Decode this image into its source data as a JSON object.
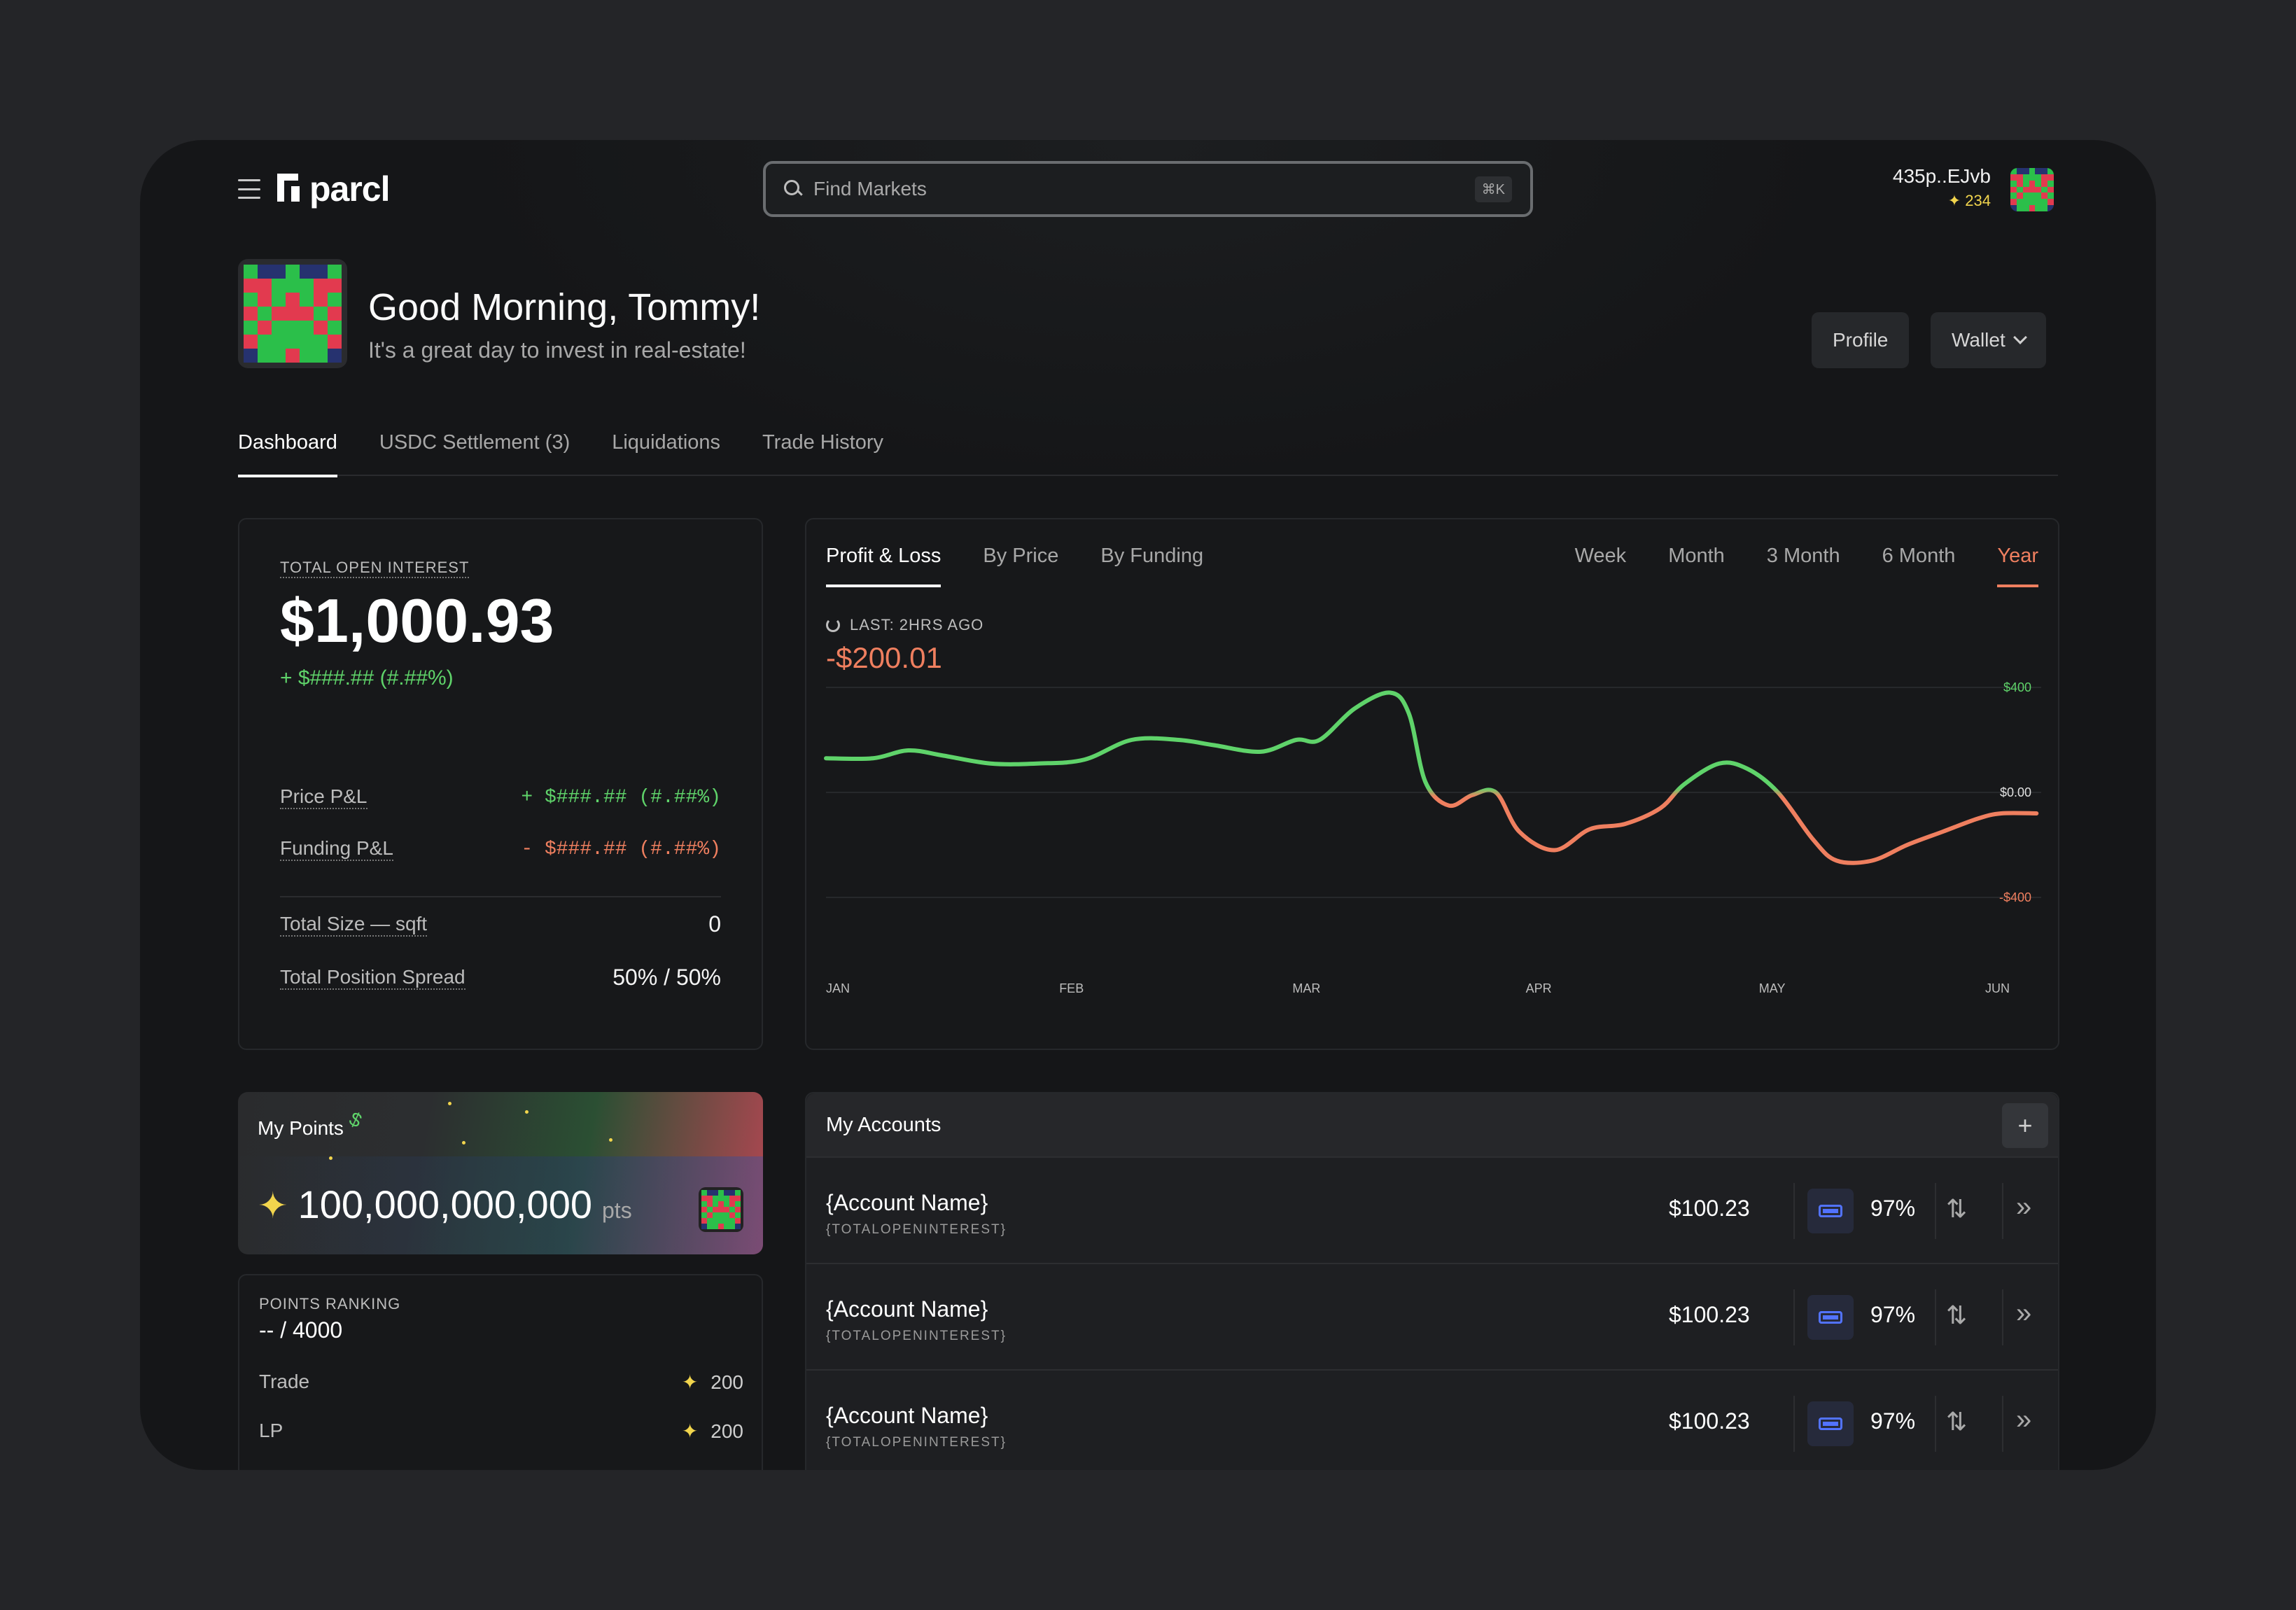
{
  "header": {
    "logo_text": "parcl",
    "search_placeholder": "Find Markets",
    "search_shortcut": "⌘K",
    "wallet_address": "435p..EJvb",
    "user_points": "✦ 234"
  },
  "greeting": {
    "title": "Good Morning, Tommy!",
    "subtitle": "It's a great day to invest in real-estate!",
    "profile_button": "Profile",
    "wallet_button": "Wallet"
  },
  "tabs": [
    {
      "label": "Dashboard",
      "active": true
    },
    {
      "label": "USDC Settlement (3)",
      "active": false
    },
    {
      "label": "Liquidations",
      "active": false
    },
    {
      "label": "Trade History",
      "active": false
    }
  ],
  "open_interest": {
    "label": "TOTAL OPEN INTEREST",
    "value": "$1,000.93",
    "change": "+ $###.## (#.##%)",
    "price_pnl_label": "Price P&L",
    "price_pnl_value": "+ $###.## (#.##%)",
    "funding_pnl_label": "Funding P&L",
    "funding_pnl_value": "- $###.## (#.##%)",
    "total_size_label": "Total Size — sqft",
    "total_size_value": "0",
    "spread_label": "Total Position Spread",
    "spread_value": "50% / 50%"
  },
  "chart_card": {
    "tabs": [
      "Profit & Loss",
      "By Price",
      "By Funding"
    ],
    "active_tab": "Profit & Loss",
    "ranges": [
      "Week",
      "Month",
      "3 Month",
      "6 Month",
      "Year"
    ],
    "active_range": "Year",
    "last_updated": "LAST: 2HRS AGO",
    "pnl_value": "-$200.01"
  },
  "chart_data": {
    "type": "line",
    "x": [
      "JAN",
      "FEB",
      "MAR",
      "APR",
      "MAY",
      "JUN"
    ],
    "y_ticks": [
      "$400",
      "$0.00",
      "-$400"
    ],
    "ylim": [
      -400,
      400
    ],
    "positive_color": "#5fd36a",
    "negative_color": "#ef7f5f",
    "grid": true,
    "series": [
      {
        "x": [
          0,
          0.2,
          0.35,
          0.5,
          0.7,
          0.9,
          1.1,
          1.3,
          1.5,
          1.65,
          1.85,
          2.0,
          2.1,
          2.25,
          2.4,
          2.48,
          2.55,
          2.65,
          2.75,
          2.85,
          2.95,
          3.1,
          3.25,
          3.4,
          3.55,
          3.65,
          3.8,
          3.92,
          4.05,
          4.2,
          4.3,
          4.45,
          4.6,
          4.75,
          4.9,
          5.0,
          5.15
        ],
        "y": [
          130,
          130,
          160,
          140,
          110,
          110,
          125,
          200,
          200,
          180,
          155,
          200,
          200,
          320,
          380,
          300,
          40,
          -50,
          -10,
          0,
          -150,
          -220,
          -140,
          -120,
          -60,
          30,
          110,
          90,
          0,
          -180,
          -260,
          -260,
          -200,
          -150,
          -100,
          -80,
          -80
        ]
      }
    ]
  },
  "points": {
    "title": "My Points",
    "value": "100,000,000,000",
    "unit": "pts",
    "ranking_label": "POINTS RANKING",
    "ranking_value": "-- / 4000",
    "rows": [
      {
        "label": "Trade",
        "value": "200"
      },
      {
        "label": "LP",
        "value": "200"
      }
    ]
  },
  "accounts": {
    "title": "My Accounts",
    "rows": [
      {
        "name": "{Account Name}",
        "sub": "{TOTALOPENINTEREST}",
        "value": "$100.23",
        "pct": "97%"
      },
      {
        "name": "{Account Name}",
        "sub": "{TOTALOPENINTEREST}",
        "value": "$100.23",
        "pct": "97%"
      },
      {
        "name": "{Account Name}",
        "sub": "{TOTALOPENINTEREST}",
        "value": "$100.23",
        "pct": "97%"
      }
    ]
  }
}
